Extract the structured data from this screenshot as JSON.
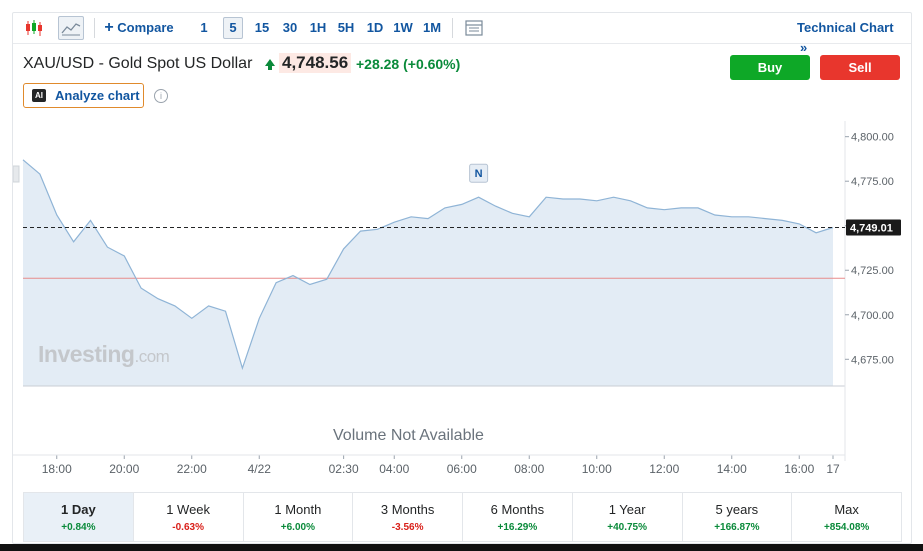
{
  "toolbar": {
    "compare_label": "Compare",
    "intervals": [
      "1",
      "5",
      "15",
      "30",
      "1H",
      "5H",
      "1D",
      "1W",
      "1M"
    ],
    "active_interval": "5",
    "technical_chart_label": "Technical Chart",
    "icons": [
      "candlestick-icon",
      "area-chart-icon",
      "plus-icon",
      "layout-icon",
      "double-chevron-right-icon"
    ]
  },
  "header": {
    "symbol": "XAU/USD - Gold Spot US Dollar",
    "price": "4,748.56",
    "change": "+28.28 (+0.60%)",
    "buy_label": "Buy",
    "sell_label": "Sell",
    "analyze_label": "Analyze chart",
    "ai_badge": "AI",
    "info_glyph": "i"
  },
  "colors": {
    "accent": "#1256a0",
    "buy": "#0ea827",
    "sell": "#e8362d",
    "line": "#8fb4d6",
    "area": "#e3ecf5",
    "prev_close": "#e88c8c",
    "positive": "#0a8a3a",
    "negative": "#d91e18"
  },
  "chart_data": {
    "type": "area",
    "x": [
      "17:00",
      "17:30",
      "18:00",
      "18:30",
      "19:00",
      "19:30",
      "20:00",
      "20:30",
      "21:00",
      "21:30",
      "22:00",
      "22:30",
      "23:00",
      "23:30",
      "4/22 00:00",
      "00:30",
      "01:00",
      "01:30",
      "02:00",
      "02:30",
      "03:00",
      "03:30",
      "04:00",
      "04:30",
      "05:00",
      "05:30",
      "06:00",
      "06:30",
      "07:00",
      "07:30",
      "08:00",
      "08:30",
      "09:00",
      "09:30",
      "10:00",
      "10:30",
      "11:00",
      "11:30",
      "12:00",
      "12:30",
      "13:00",
      "13:30",
      "14:00",
      "14:30",
      "15:00",
      "15:30",
      "16:00",
      "16:30",
      "17:00"
    ],
    "series": [
      {
        "values": [
          4787,
          4779,
          4756,
          4741,
          4753,
          4738,
          4733,
          4715,
          4709,
          4705,
          4698,
          4705,
          4702,
          4670,
          4698,
          4718,
          4722,
          4717,
          4720,
          4737,
          4747,
          4748,
          4752,
          4755,
          4754,
          4760,
          4762,
          4766,
          4761,
          4757,
          4755,
          4766,
          4765,
          4765,
          4764,
          4766,
          4764,
          4760,
          4759,
          4760,
          4760,
          4756,
          4755,
          4755,
          4754,
          4753,
          4751,
          4746,
          4749
        ]
      }
    ],
    "current_value": "4,749.01",
    "current": 4749.01,
    "prev_close": 4720.5,
    "ylim": [
      4660,
      4806
    ],
    "y_ticks": [
      "4,800.00",
      "4,775.00",
      "4,750.00",
      "4,725.00",
      "4,700.00",
      "4,675.00"
    ],
    "y_tick_values": [
      4800,
      4775,
      4750,
      4725,
      4700,
      4675
    ],
    "x_ticks": [
      "18:00",
      "20:00",
      "22:00",
      "4/22",
      "02:30",
      "04:00",
      "06:00",
      "08:00",
      "10:00",
      "12:00",
      "14:00",
      "16:00",
      "17"
    ],
    "x_tick_index": [
      2,
      6,
      10,
      14,
      19,
      22,
      26,
      30,
      34,
      38,
      42,
      46,
      48
    ],
    "news_marker": "N",
    "news_index": 27,
    "volume_text": "Volume Not Available",
    "watermark": "Investing",
    "watermark_suffix": ".com",
    "grid": false
  },
  "periods": [
    {
      "label": "1 Day",
      "change": "+0.84%",
      "active": true
    },
    {
      "label": "1 Week",
      "change": "-0.63%"
    },
    {
      "label": "1 Month",
      "change": "+6.00%"
    },
    {
      "label": "3 Months",
      "change": "-3.56%"
    },
    {
      "label": "6 Months",
      "change": "+16.29%"
    },
    {
      "label": "1 Year",
      "change": "+40.75%"
    },
    {
      "label": "5 years",
      "change": "+166.87%"
    },
    {
      "label": "Max",
      "change": "+854.08%"
    }
  ]
}
